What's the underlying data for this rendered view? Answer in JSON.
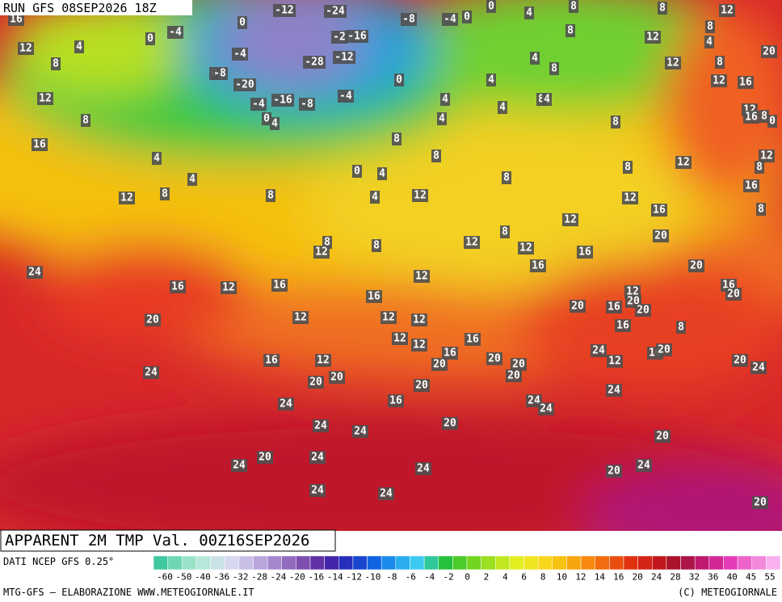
{
  "header": {
    "run": "RUN GFS 08SEP2026 18Z"
  },
  "map": {
    "title": "APPARENT 2M TMP Val. 00Z16SEP2026",
    "labels": [
      16,
      -12,
      -24,
      0,
      -8,
      -4,
      0,
      0,
      4,
      8,
      8,
      12,
      0,
      -4,
      4,
      12,
      -16,
      -2,
      -4,
      8,
      12,
      8,
      4,
      20,
      8,
      -28,
      -12,
      4,
      8,
      12,
      8,
      0,
      -8,
      -20,
      0,
      4,
      12,
      16,
      12,
      -4,
      -16,
      -8,
      -4,
      4,
      8,
      4,
      4,
      12,
      16,
      8,
      0,
      8,
      0,
      4,
      4,
      8,
      16,
      8,
      4,
      8,
      12,
      0,
      4,
      8,
      12,
      8,
      4,
      8,
      12,
      8,
      8,
      4,
      12,
      12,
      16,
      8,
      12,
      16,
      8,
      20,
      8,
      8,
      12,
      12,
      12,
      16,
      24,
      16,
      20,
      12,
      16,
      12,
      16,
      12,
      16,
      20,
      16,
      20,
      16,
      20,
      20,
      20,
      12,
      12,
      12,
      16,
      8,
      12,
      16,
      12,
      24,
      16,
      20,
      16,
      12,
      16,
      20,
      20,
      20,
      12,
      20,
      24,
      24,
      20,
      20,
      20,
      20,
      24,
      16,
      24,
      24,
      24,
      24,
      20,
      24,
      20,
      20,
      24,
      24,
      24,
      20,
      24,
      24,
      24,
      20
    ]
  },
  "legend": {
    "source": "DATI NCEP GFS 0.25°",
    "ticks": [
      -60,
      -50,
      -40,
      -36,
      -32,
      -28,
      -24,
      -20,
      -16,
      -14,
      -12,
      -10,
      -8,
      -6,
      -4,
      -2,
      0,
      2,
      4,
      6,
      8,
      10,
      12,
      14,
      16,
      20,
      24,
      28,
      32,
      36,
      40,
      45,
      55
    ]
  },
  "footer": {
    "left": "MTG-GFS — ELABORAZIONE WWW.METEOGIORNALE.IT",
    "right": "(C) METEOGIORNALE"
  }
}
